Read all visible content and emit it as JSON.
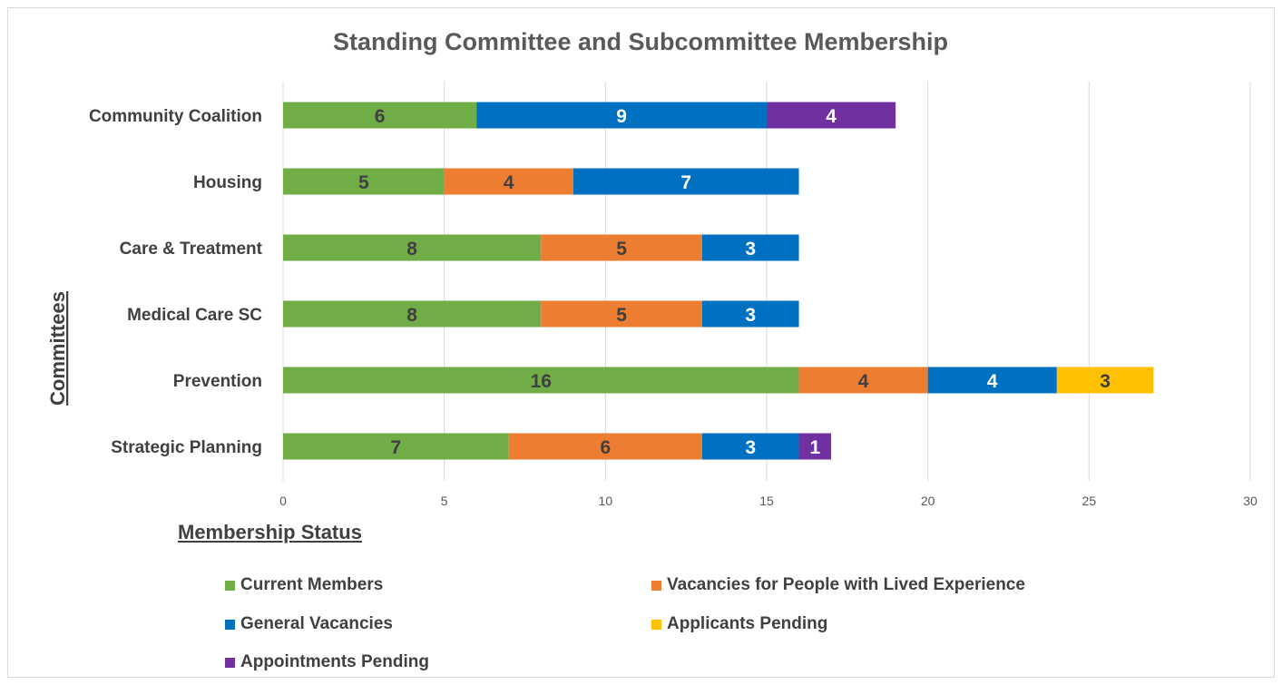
{
  "chart_data": {
    "type": "bar",
    "orientation": "horizontal",
    "stacked": true,
    "title": "Standing Committee and Subcommittee Membership",
    "ylabel": "Committees",
    "categories": [
      "Community Coalition",
      "Housing",
      "Care & Treatment",
      "Medical Care SC",
      "Prevention",
      "Strategic Planning"
    ],
    "series": [
      {
        "name": "Current Members",
        "color": "#70ad47",
        "label_color": "#404040",
        "values": [
          6,
          5,
          8,
          8,
          16,
          7
        ]
      },
      {
        "name": "Vacancies for People with Lived Experience",
        "color": "#ed7d31",
        "label_color": "#404040",
        "values": [
          0,
          4,
          5,
          5,
          4,
          6
        ]
      },
      {
        "name": "General Vacancies",
        "color": "#0070c0",
        "label_color": "#ffffff",
        "values": [
          9,
          7,
          3,
          3,
          4,
          3
        ]
      },
      {
        "name": "Applicants Pending",
        "color": "#ffc000",
        "label_color": "#404040",
        "values": [
          0,
          0,
          0,
          0,
          3,
          0
        ]
      },
      {
        "name": "Appointments Pending",
        "color": "#7030a0",
        "label_color": "#ffffff",
        "values": [
          4,
          0,
          0,
          0,
          0,
          1
        ]
      }
    ],
    "xlim": [
      0,
      30
    ],
    "xticks": [
      0,
      5,
      10,
      15,
      20,
      25,
      30
    ],
    "grid": true,
    "legend": {
      "title": "Membership Status",
      "placement": "bottom"
    }
  }
}
